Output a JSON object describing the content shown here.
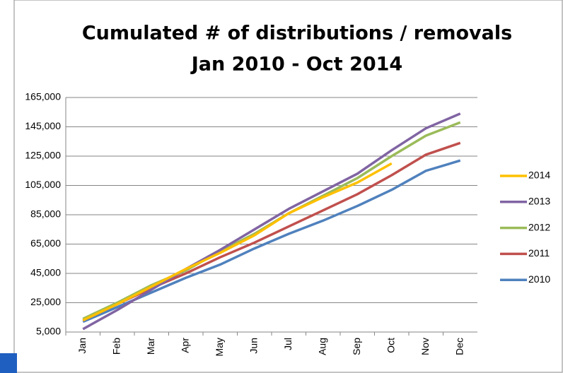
{
  "chart_data": {
    "type": "line",
    "title": [
      "Cumulated # of distributions / removals",
      "Jan 2010 - Oct 2014"
    ],
    "categories": [
      "Jan",
      "Feb",
      "Mar",
      "Apr",
      "May",
      "Jun",
      "Jul",
      "Aug",
      "Sep",
      "Oct",
      "Nov",
      "Dec"
    ],
    "series": [
      {
        "name": "2014",
        "color": "#ffc000",
        "values": [
          13000,
          24000,
          36000,
          48000,
          59000,
          71000,
          86000,
          97000,
          107000,
          120000,
          null,
          null
        ]
      },
      {
        "name": "2013",
        "color": "#8064a2",
        "values": [
          7000,
          20000,
          34000,
          48000,
          61000,
          75000,
          89000,
          101000,
          113000,
          129000,
          144000,
          154000
        ]
      },
      {
        "name": "2012",
        "color": "#9bbb59",
        "values": [
          14000,
          25000,
          37000,
          47000,
          60000,
          72000,
          86000,
          98000,
          110000,
          125000,
          139000,
          148000
        ]
      },
      {
        "name": "2011",
        "color": "#c0504d",
        "values": [
          13000,
          24000,
          35000,
          45000,
          56000,
          66000,
          77000,
          88000,
          99000,
          112000,
          126000,
          134000
        ]
      },
      {
        "name": "2010",
        "color": "#4f81bd",
        "values": [
          12000,
          22000,
          32000,
          42000,
          51000,
          62000,
          72000,
          81000,
          91000,
          102000,
          115000,
          122000
        ]
      }
    ],
    "ylim": [
      5000,
      165000
    ],
    "yticks": [
      {
        "value": 5000,
        "label": "5,000"
      },
      {
        "value": 25000,
        "label": "25,000"
      },
      {
        "value": 45000,
        "label": "45,000"
      },
      {
        "value": 65000,
        "label": "65,000"
      },
      {
        "value": 85000,
        "label": "85,000"
      },
      {
        "value": 105000,
        "label": "105,000"
      },
      {
        "value": 125000,
        "label": "125,000"
      },
      {
        "value": 145000,
        "label": "145,000"
      },
      {
        "value": 165000,
        "label": "165,000"
      }
    ],
    "grid": true,
    "legend": "right"
  }
}
